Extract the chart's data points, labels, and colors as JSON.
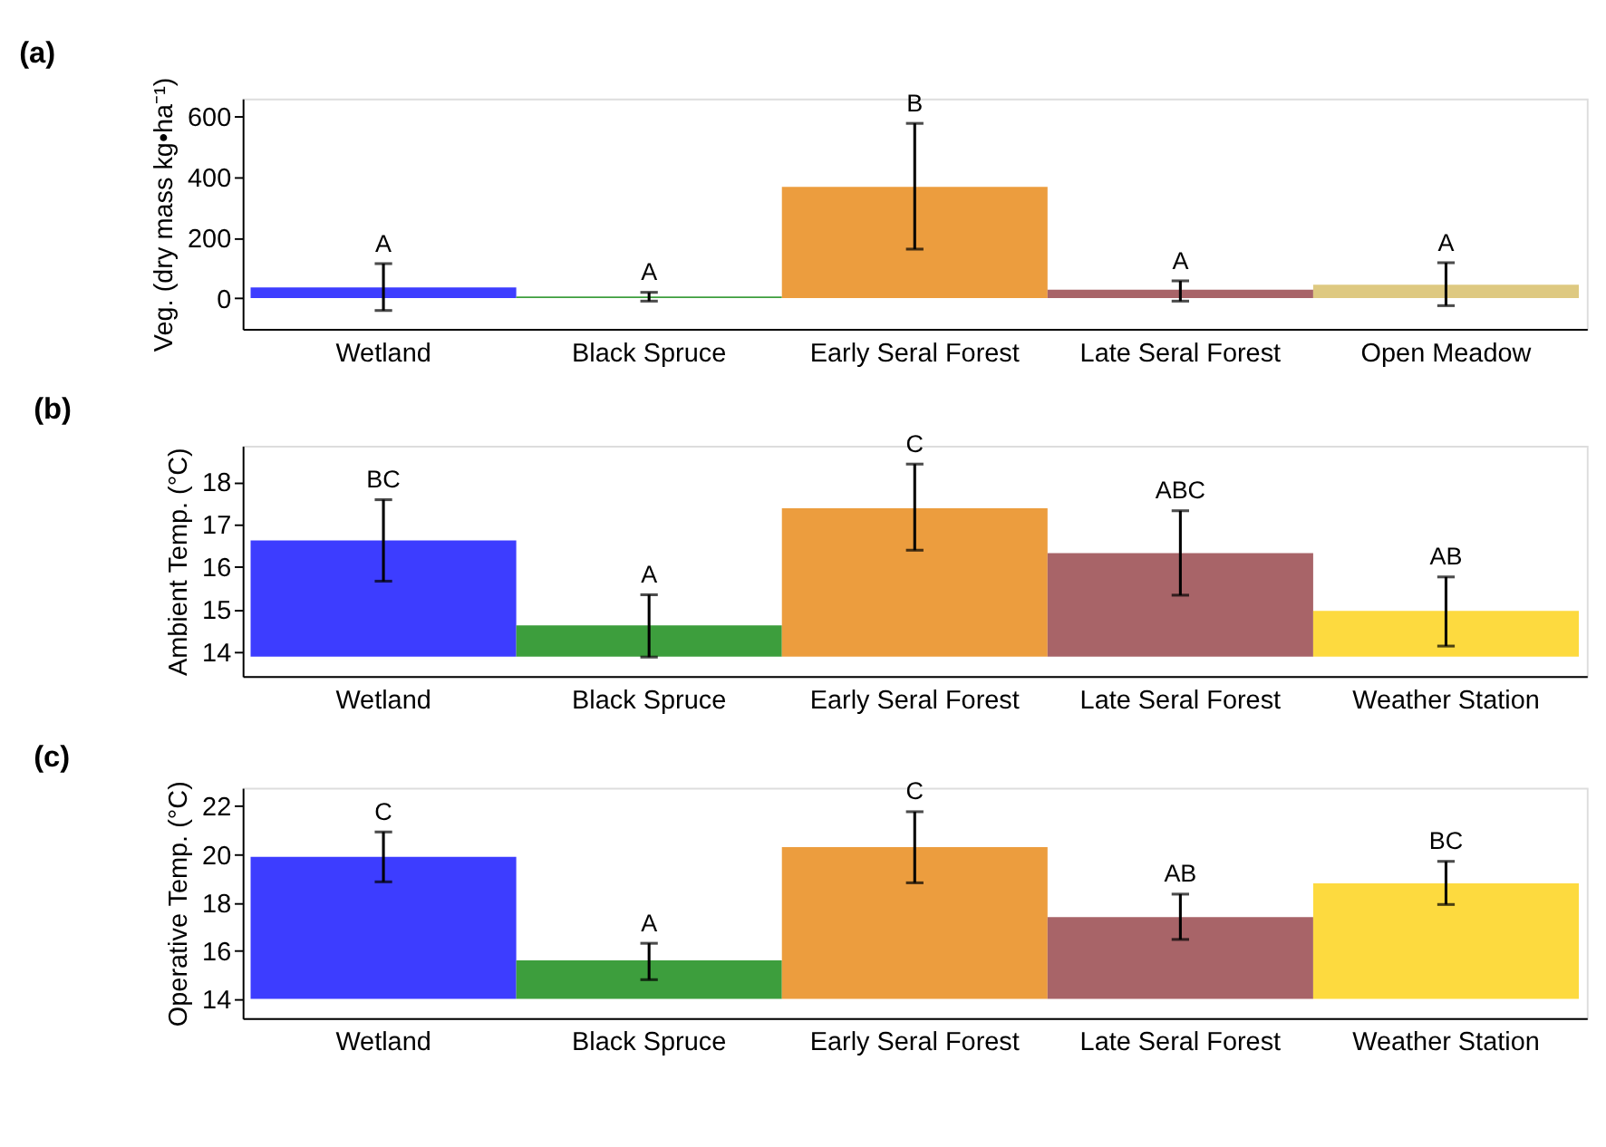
{
  "chart_data": [
    {
      "type": "bar",
      "title": "(a)",
      "ylabel": "Veg. (dry mass kg•ha⁻¹)",
      "categories": [
        "Wetland",
        "Black Spruce",
        "Early Seral Forest",
        "Late Seral Forest",
        "Open Meadow"
      ],
      "values": [
        35,
        5,
        368,
        28,
        44
      ],
      "colors": [
        "#3333ff",
        "#339933",
        "#eb9834",
        "#a35c60",
        "#dcc67a"
      ],
      "errors": [
        [
          -41,
          114
        ],
        [
          -10,
          19
        ],
        [
          162,
          578
        ],
        [
          -10,
          57
        ],
        [
          -25,
          117
        ]
      ],
      "annotations": [
        {
          "text": "A",
          "x": "Wetland",
          "y": 114
        },
        {
          "text": "A",
          "x": "Black Spruce",
          "y": 19
        },
        {
          "text": "B",
          "x": "Early Seral Forest",
          "y": 578
        },
        {
          "text": "A",
          "x": "Late Seral Forest",
          "y": 57
        },
        {
          "text": "A",
          "x": "Open Meadow",
          "y": 117
        }
      ],
      "ylim": [
        -102,
        660
      ],
      "yticks": [
        0,
        200,
        400,
        600
      ],
      "grid": false,
      "legend": false
    },
    {
      "type": "bar",
      "title": "(b)",
      "ylabel": "Ambient Temp. (°C)",
      "categories": [
        "Wetland",
        "Black Spruce",
        "Early Seral Forest",
        "Late Seral Forest",
        "Weather Station"
      ],
      "base": [
        13.88,
        13.88,
        13.88,
        13.88,
        13.88
      ],
      "values": [
        2.74,
        0.74,
        3.5,
        2.44,
        1.08
      ],
      "colors": [
        "#3333ff",
        "#339933",
        "#eb9834",
        "#a35c60",
        "#fdd835"
      ],
      "errors": [
        [
          15.66,
          17.58
        ],
        [
          13.87,
          15.34
        ],
        [
          16.39,
          18.42
        ],
        [
          15.33,
          17.32
        ],
        [
          14.13,
          15.76
        ]
      ],
      "annotations": [
        {
          "text": "BC",
          "x": "Wetland",
          "y": 17.58
        },
        {
          "text": "A",
          "x": "Black Spruce",
          "y": 15.34
        },
        {
          "text": "C",
          "x": "Early Seral Forest",
          "y": 18.42
        },
        {
          "text": "ABC",
          "x": "Late Seral Forest",
          "y": 17.32
        },
        {
          "text": "AB",
          "x": "Weather Station",
          "y": 15.76
        }
      ],
      "ylim": [
        13.42,
        18.85
      ],
      "yticks": [
        14,
        15,
        16,
        17,
        18
      ],
      "grid": false,
      "legend": false
    },
    {
      "type": "bar",
      "title": "(c)",
      "ylabel": "Operative Temp. (°C)",
      "categories": [
        "Wetland",
        "Black Spruce",
        "Early Seral Forest",
        "Late Seral Forest",
        "Weather Station"
      ],
      "base": [
        14.0,
        14.0,
        14.0,
        14.0,
        14.0
      ],
      "values": [
        5.9,
        1.6,
        6.3,
        3.4,
        4.8
      ],
      "colors": [
        "#3333ff",
        "#339933",
        "#eb9834",
        "#a35c60",
        "#fdd835"
      ],
      "errors": [
        [
          18.86,
          20.93
        ],
        [
          14.8,
          16.31
        ],
        [
          18.82,
          21.77
        ],
        [
          16.47,
          18.35
        ],
        [
          17.92,
          19.71
        ]
      ],
      "annotations": [
        {
          "text": "C",
          "x": "Wetland",
          "y": 20.93
        },
        {
          "text": "A",
          "x": "Black Spruce",
          "y": 16.31
        },
        {
          "text": "C",
          "x": "Early Seral Forest",
          "y": 21.77
        },
        {
          "text": "AB",
          "x": "Late Seral Forest",
          "y": 18.35
        },
        {
          "text": "BC",
          "x": "Weather Station",
          "y": 19.71
        }
      ],
      "ylim": [
        13.2,
        22.76
      ],
      "yticks": [
        14,
        16,
        18,
        20,
        22
      ],
      "grid": false,
      "legend": false
    }
  ]
}
